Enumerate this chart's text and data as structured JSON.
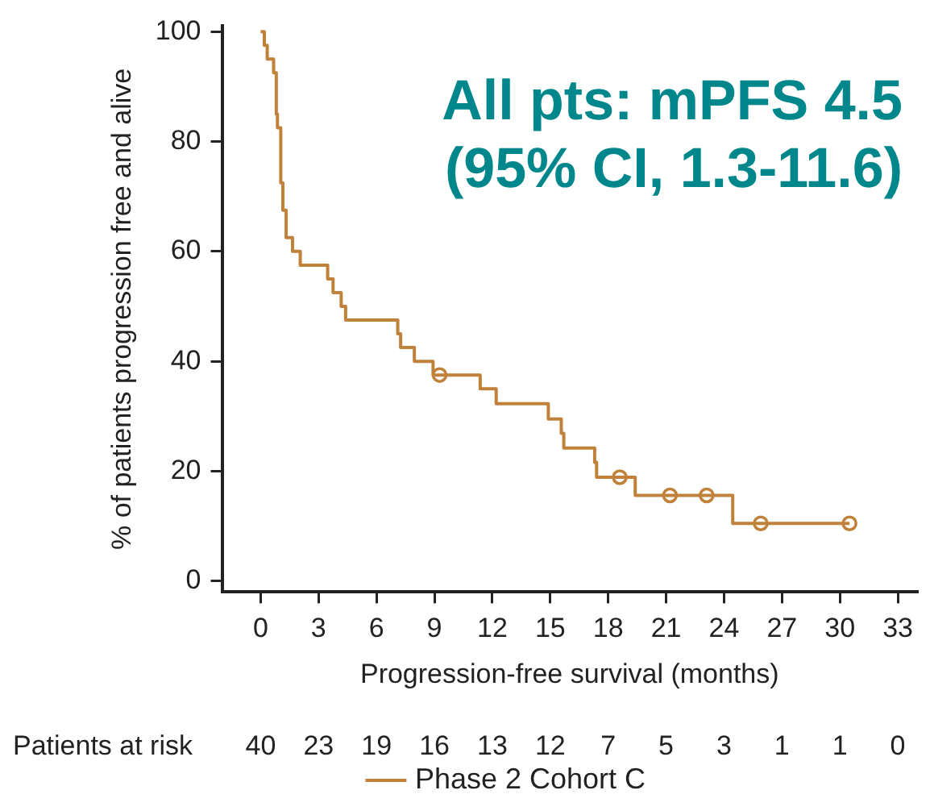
{
  "chart_data": {
    "type": "step",
    "xlabel": "Progression-free survival (months)",
    "ylabel": "% of patients progression free and alive",
    "xlim": [
      -2,
      34
    ],
    "xticks": [
      0,
      3,
      6,
      9,
      12,
      15,
      18,
      21,
      24,
      27,
      30,
      33
    ],
    "ylim": [
      -2,
      101
    ],
    "yticks": [
      0,
      20,
      40,
      60,
      80,
      100
    ],
    "grid": false,
    "legend": "bottom",
    "series": [
      {
        "name": "Phase 2 Cohort C",
        "type": "step",
        "color": "#c0823a",
        "marker": "none",
        "x": [
          0,
          0.19,
          0.34,
          0.67,
          0.81,
          0.87,
          1.04,
          1.15,
          1.32,
          1.65,
          2.05,
          3.47,
          3.75,
          4.17,
          4.4,
          7.1,
          7.25,
          7.96,
          8.93,
          11.37,
          12.2,
          14.9,
          15.57,
          15.7,
          17.3,
          17.4,
          19.4,
          24.45,
          30.5
        ],
        "values": [
          100,
          97.5,
          95,
          92.5,
          85,
          82.5,
          72.5,
          67.5,
          62.5,
          60,
          57.5,
          55,
          52.5,
          50,
          47.5,
          45,
          42.5,
          40,
          37.5,
          35,
          32.3,
          29.5,
          26.9,
          24.2,
          21.6,
          18.9,
          15.6,
          10.5,
          10.5
        ]
      },
      {
        "type": "scatter",
        "color": "#c0823a",
        "marker": "circle",
        "x": [
          9.27,
          18.6,
          21.2,
          23.1,
          25.9,
          30.5
        ],
        "values": [
          37.5,
          18.9,
          15.6,
          15.6,
          10.5,
          10.5
        ]
      }
    ],
    "annotations": [
      "All pts: mPFS 4.5",
      "(95% CI, 1.3-11.6)",
      "Patients at risk",
      "40",
      "23",
      "19",
      "16",
      "13",
      "12",
      "7",
      "5",
      "3",
      "1",
      "1",
      "0"
    ]
  }
}
